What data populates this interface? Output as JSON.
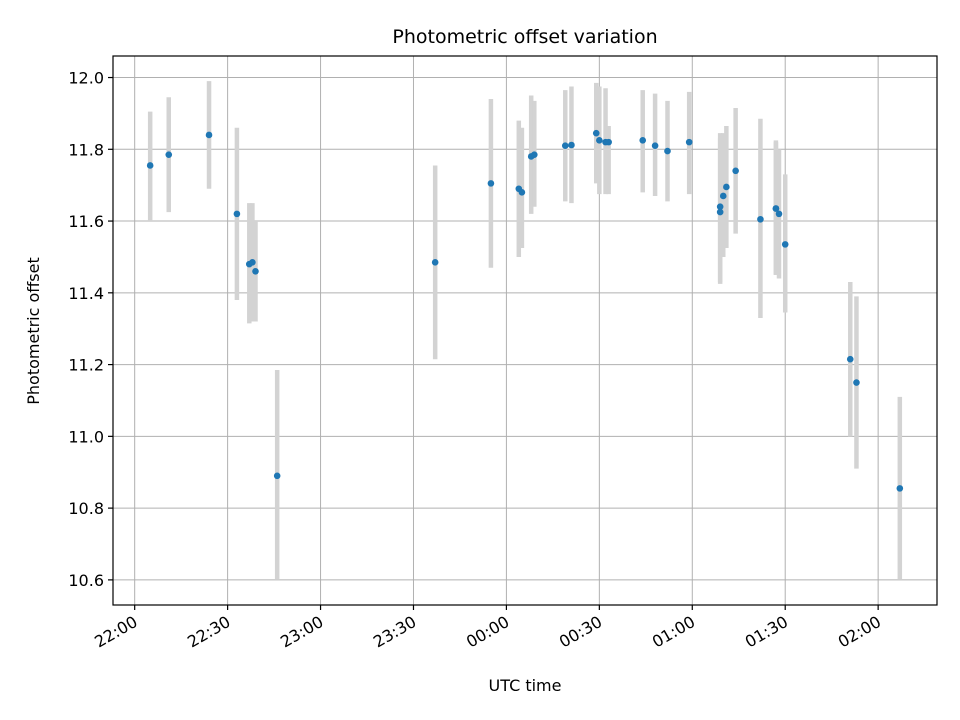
{
  "chart_data": {
    "type": "scatter",
    "title": "Photometric offset variation",
    "xlabel": "UTC time",
    "ylabel": "Photometric offset",
    "x_is_time": true,
    "xlim": [
      "21:53",
      "02:19"
    ],
    "ylim": [
      10.53,
      12.06
    ],
    "x_ticks": [
      "22:00",
      "22:30",
      "23:00",
      "23:30",
      "00:00",
      "00:30",
      "01:00",
      "01:30",
      "02:00"
    ],
    "y_ticks": [
      10.6,
      10.8,
      11.0,
      11.2,
      11.4,
      11.6,
      11.8,
      12.0
    ],
    "y_tick_labels": [
      "10.6",
      "10.8",
      "11.0",
      "11.2",
      "11.4",
      "11.6",
      "11.8",
      "12.0"
    ],
    "grid": true,
    "colors": {
      "point": "#1f77b4",
      "errorbar": "#d3d3d3"
    },
    "points": [
      {
        "x": "22:05",
        "y": 11.755,
        "lo": 11.6,
        "hi": 11.905
      },
      {
        "x": "22:11",
        "y": 11.785,
        "lo": 11.625,
        "hi": 11.945
      },
      {
        "x": "22:24",
        "y": 11.84,
        "lo": 11.69,
        "hi": 11.99
      },
      {
        "x": "22:33",
        "y": 11.62,
        "lo": 11.38,
        "hi": 11.86
      },
      {
        "x": "22:37",
        "y": 11.48,
        "lo": 11.315,
        "hi": 11.65
      },
      {
        "x": "22:38",
        "y": 11.485,
        "lo": 11.32,
        "hi": 11.65
      },
      {
        "x": "22:39",
        "y": 11.46,
        "lo": 11.32,
        "hi": 11.6
      },
      {
        "x": "22:46",
        "y": 10.89,
        "lo": 10.6,
        "hi": 11.185
      },
      {
        "x": "23:37",
        "y": 11.485,
        "lo": 11.215,
        "hi": 11.755
      },
      {
        "x": "23:55",
        "y": 11.705,
        "lo": 11.47,
        "hi": 11.94
      },
      {
        "x": "00:04",
        "y": 11.69,
        "lo": 11.5,
        "hi": 11.88
      },
      {
        "x": "00:05",
        "y": 11.68,
        "lo": 11.525,
        "hi": 11.86
      },
      {
        "x": "00:08",
        "y": 11.78,
        "lo": 11.62,
        "hi": 11.95
      },
      {
        "x": "00:09",
        "y": 11.785,
        "lo": 11.64,
        "hi": 11.935
      },
      {
        "x": "00:19",
        "y": 11.81,
        "lo": 11.655,
        "hi": 11.965
      },
      {
        "x": "00:21",
        "y": 11.812,
        "lo": 11.65,
        "hi": 11.975
      },
      {
        "x": "00:29",
        "y": 11.845,
        "lo": 11.705,
        "hi": 11.985
      },
      {
        "x": "00:30",
        "y": 11.825,
        "lo": 11.675,
        "hi": 11.975
      },
      {
        "x": "00:32",
        "y": 11.82,
        "lo": 11.675,
        "hi": 11.97
      },
      {
        "x": "00:33",
        "y": 11.82,
        "lo": 11.675,
        "hi": 11.865
      },
      {
        "x": "00:44",
        "y": 11.825,
        "lo": 11.68,
        "hi": 11.965
      },
      {
        "x": "00:48",
        "y": 11.81,
        "lo": 11.67,
        "hi": 11.955
      },
      {
        "x": "00:52",
        "y": 11.795,
        "lo": 11.655,
        "hi": 11.935
      },
      {
        "x": "00:59",
        "y": 11.82,
        "lo": 11.675,
        "hi": 11.96
      },
      {
        "x": "01:09",
        "y": 11.625,
        "lo": 11.425,
        "hi": 11.83
      },
      {
        "x": "01:09",
        "y": 11.64,
        "lo": 11.43,
        "hi": 11.845
      },
      {
        "x": "01:10",
        "y": 11.67,
        "lo": 11.5,
        "hi": 11.845
      },
      {
        "x": "01:11",
        "y": 11.695,
        "lo": 11.525,
        "hi": 11.865
      },
      {
        "x": "01:14",
        "y": 11.74,
        "lo": 11.565,
        "hi": 11.915
      },
      {
        "x": "01:22",
        "y": 11.605,
        "lo": 11.33,
        "hi": 11.885
      },
      {
        "x": "01:27",
        "y": 11.635,
        "lo": 11.45,
        "hi": 11.825
      },
      {
        "x": "01:27",
        "y": 11.635,
        "lo": 11.45,
        "hi": 11.82
      },
      {
        "x": "01:28",
        "y": 11.62,
        "lo": 11.44,
        "hi": 11.8
      },
      {
        "x": "01:30",
        "y": 11.535,
        "lo": 11.345,
        "hi": 11.73
      },
      {
        "x": "01:51",
        "y": 11.215,
        "lo": 11.0,
        "hi": 11.43
      },
      {
        "x": "01:53",
        "y": 11.15,
        "lo": 10.91,
        "hi": 11.39
      },
      {
        "x": "02:07",
        "y": 10.855,
        "lo": 10.6,
        "hi": 11.11
      }
    ]
  }
}
